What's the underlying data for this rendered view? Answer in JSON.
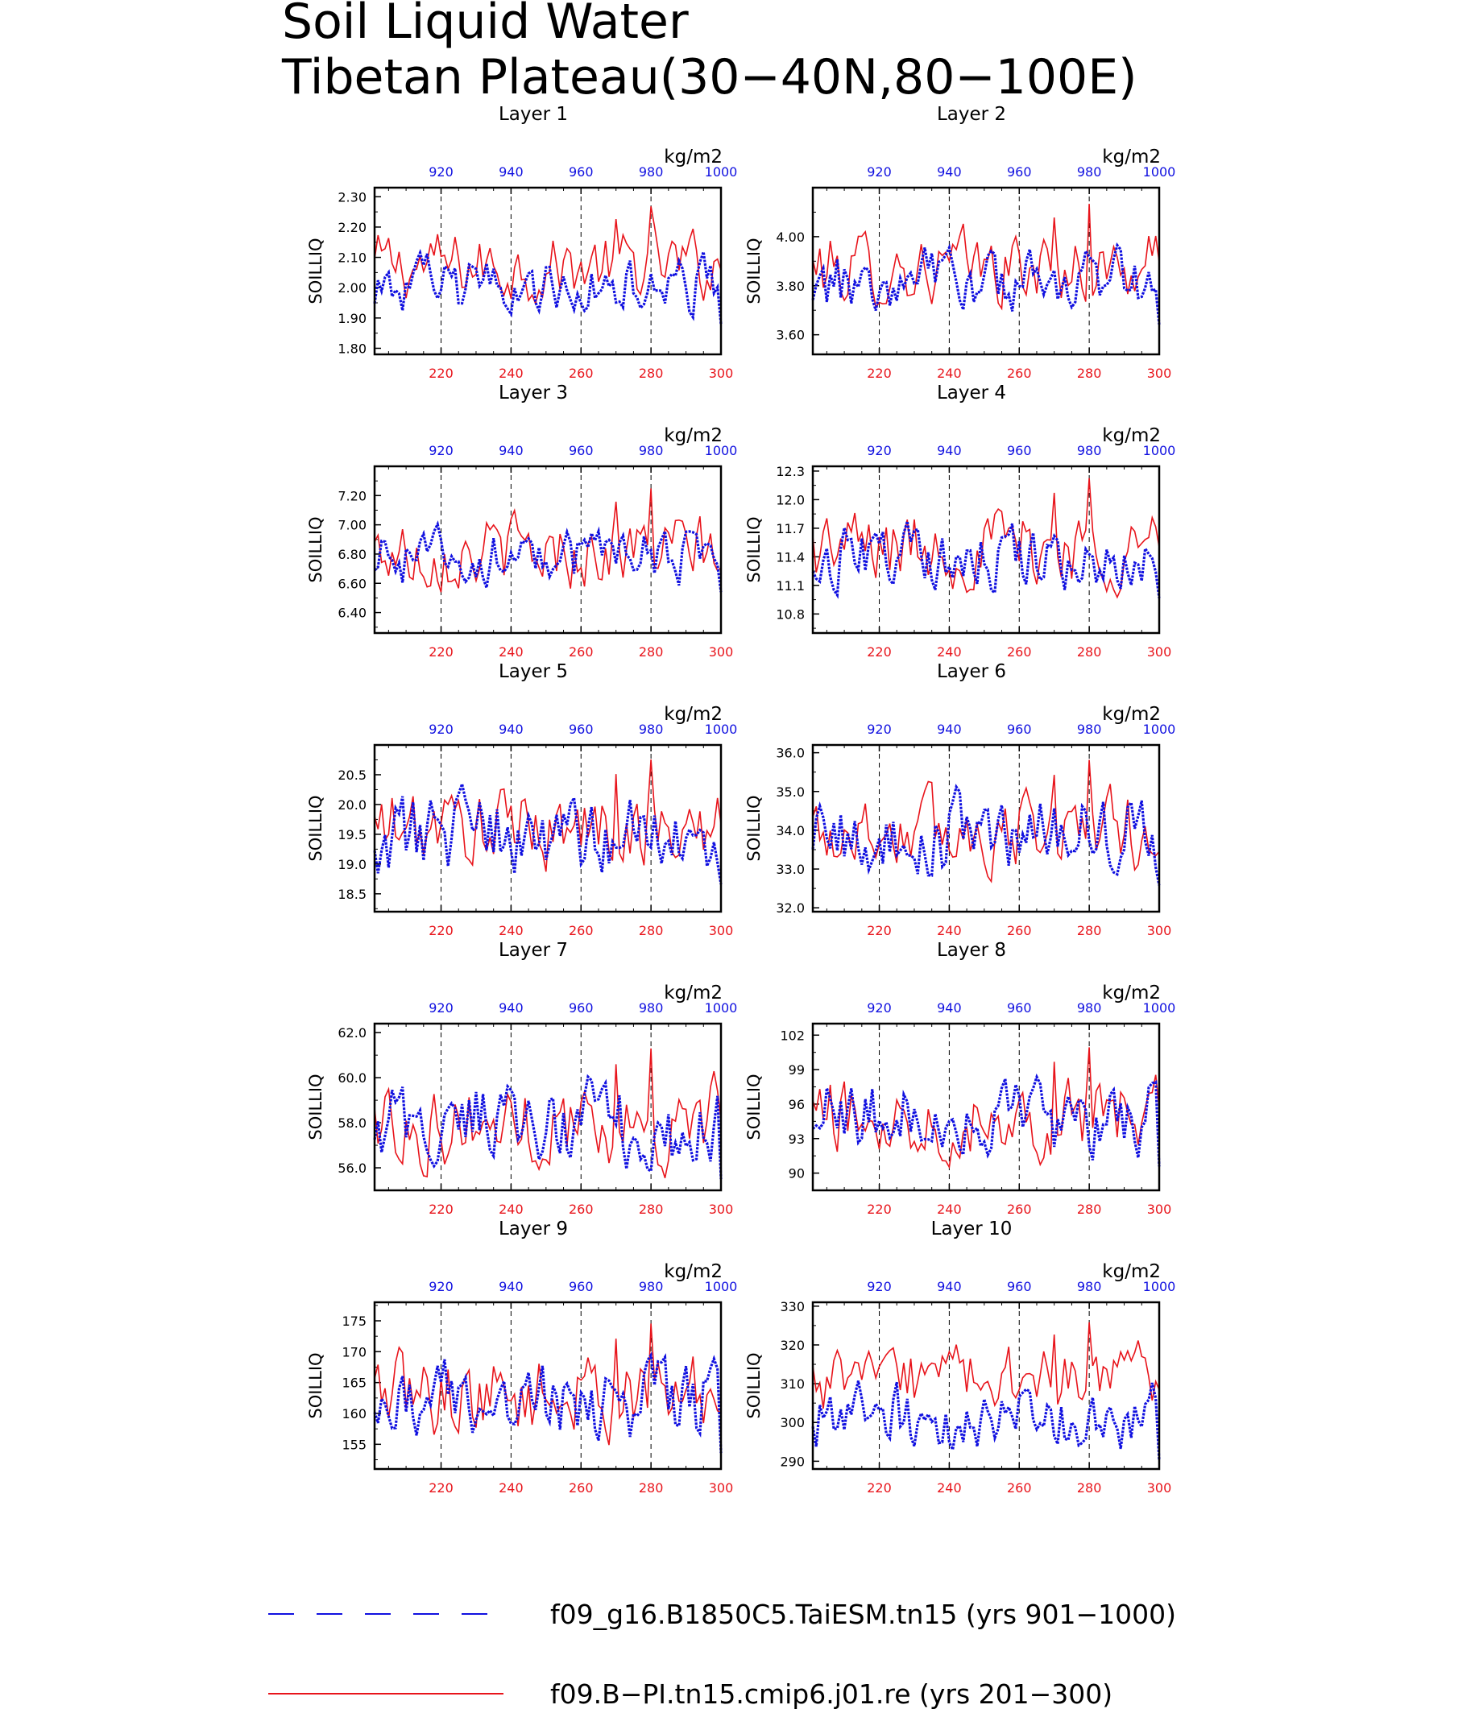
{
  "page": {
    "title_line1": "Soil Liquid Water",
    "title_line2": "Tibetan Plateau(30−40N,80−100E)"
  },
  "legend": [
    {
      "label": "f09_g16.B1850C5.TaiESM.tn15 (yrs 901−1000)",
      "color": "#1010e0",
      "style": "dashed"
    },
    {
      "label": "f09.B−PI.tn15.cmip6.j01.re (yrs 201−300)",
      "color": "#e8141b",
      "style": "solid"
    }
  ],
  "chart_data": {
    "type": "line",
    "bottom_axis": {
      "range": [
        201,
        300
      ],
      "ticks": [
        220,
        240,
        260,
        280,
        300
      ],
      "color": "#e8141b"
    },
    "top_axis": {
      "range": [
        901,
        1000
      ],
      "ticks": [
        920,
        940,
        960,
        980,
        1000
      ],
      "color": "#1010e0"
    },
    "top_axis_unit": "kg/m2",
    "ylabel": "SOILLIQ",
    "grid": "dashed vertical lines at 220, 240, 260, 280",
    "panels": [
      {
        "title": "Layer 1",
        "ylim": [
          1.78,
          2.33
        ],
        "yticks": [
          "1.80",
          "1.90",
          "2.00",
          "2.10",
          "2.20",
          "2.30"
        ],
        "mean_red": 2.07,
        "amp_red": 0.06,
        "mean_blue": 2.0,
        "amp_blue": 0.05
      },
      {
        "title": "Layer 2",
        "ylim": [
          3.52,
          4.2
        ],
        "yticks": [
          "3.60",
          "3.80",
          "4.00"
        ],
        "mean_red": 3.87,
        "amp_red": 0.08,
        "mean_blue": 3.81,
        "amp_blue": 0.07
      },
      {
        "title": "Layer 3",
        "ylim": [
          6.26,
          7.4
        ],
        "yticks": [
          "6.40",
          "6.60",
          "6.80",
          "7.00",
          "7.20"
        ],
        "mean_red": 6.82,
        "amp_red": 0.13,
        "mean_blue": 6.78,
        "amp_blue": 0.1
      },
      {
        "title": "Layer 4",
        "ylim": [
          10.6,
          12.35
        ],
        "yticks": [
          "10.8",
          "11.1",
          "11.4",
          "11.7",
          "12.0",
          "12.3"
        ],
        "mean_red": 11.5,
        "amp_red": 0.22,
        "mean_blue": 11.4,
        "amp_blue": 0.18
      },
      {
        "title": "Layer 5",
        "ylim": [
          18.2,
          21.0
        ],
        "yticks": [
          "18.5",
          "19.0",
          "19.5",
          "20.0",
          "20.5"
        ],
        "mean_red": 19.6,
        "amp_red": 0.35,
        "mean_blue": 19.5,
        "amp_blue": 0.35
      },
      {
        "title": "Layer 6",
        "ylim": [
          31.9,
          36.2
        ],
        "yticks": [
          "32.0",
          "33.0",
          "34.0",
          "35.0",
          "36.0"
        ],
        "mean_red": 34.0,
        "amp_red": 0.55,
        "mean_blue": 33.9,
        "amp_blue": 0.55
      },
      {
        "title": "Layer 7",
        "ylim": [
          55.0,
          62.4
        ],
        "yticks": [
          "56.0",
          "58.0",
          "60.0",
          "62.0"
        ],
        "mean_red": 58.0,
        "amp_red": 1.0,
        "mean_blue": 57.9,
        "amp_blue": 1.0
      },
      {
        "title": "Layer 8",
        "ylim": [
          88.5,
          103.0
        ],
        "yticks": [
          "90",
          "93",
          "96",
          "99",
          "102"
        ],
        "mean_red": 95.0,
        "amp_red": 1.8,
        "mean_blue": 94.9,
        "amp_blue": 1.8
      },
      {
        "title": "Layer 9",
        "ylim": [
          151.0,
          178.0
        ],
        "yticks": [
          "155",
          "160",
          "165",
          "170",
          "175"
        ],
        "mean_red": 163.0,
        "amp_red": 3.5,
        "mean_blue": 162.0,
        "amp_blue": 3.5
      },
      {
        "title": "Layer 10",
        "ylim": [
          288.0,
          331.0
        ],
        "yticks": [
          "290",
          "300",
          "310",
          "320",
          "330"
        ],
        "mean_red": 311.0,
        "amp_red": 4.5,
        "mean_blue": 301.0,
        "amp_blue": 4.5
      }
    ]
  }
}
